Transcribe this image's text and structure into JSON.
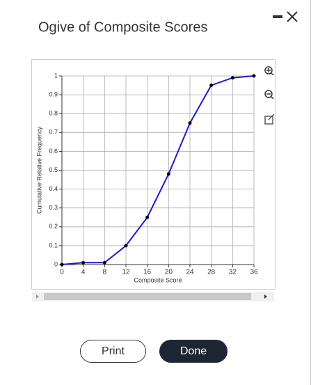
{
  "dialog": {
    "buttons": [
      "Print",
      "Done"
    ]
  },
  "chart_data": {
    "type": "line",
    "title": "Ogive of Composite Scores",
    "x_label": "Composite Score",
    "y_label": "Cumulative Relative Frequency",
    "x": [
      0,
      4,
      8,
      12,
      16,
      20,
      24,
      28,
      32,
      36
    ],
    "values": [
      0,
      0.01,
      0.01,
      0.1,
      0.25,
      0.48,
      0.75,
      0.95,
      0.99,
      1
    ],
    "color": "#1a1ad6",
    "marker_color": "#000000",
    "xlim": [
      0,
      36
    ],
    "xticks": [
      0,
      4,
      8,
      12,
      16,
      20,
      24,
      28,
      32,
      36
    ],
    "ylim": [
      0,
      1
    ],
    "yticks": [
      0,
      0.1,
      0.2,
      0.3,
      0.4,
      0.5,
      0.6,
      0.7,
      0.8,
      0.9,
      1
    ],
    "grid": true
  }
}
